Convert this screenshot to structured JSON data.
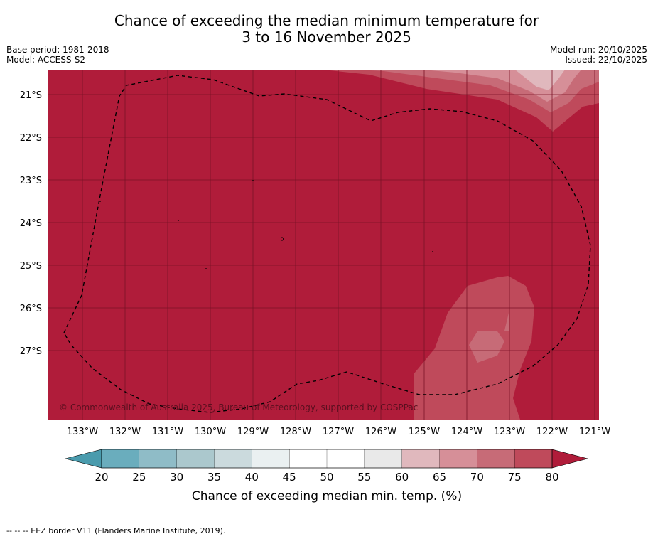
{
  "title": {
    "line1": "Chance of exceeding the median minimum temperature for",
    "line2": "3 to 16 November 2025"
  },
  "meta": {
    "base_period": "Base period: 1981-2018",
    "model": "Model: ACCESS-S2",
    "model_run": "Model run: 20/10/2025",
    "issued": "Issued: 22/10/2025"
  },
  "map": {
    "lon_labels": [
      "133°W",
      "132°W",
      "131°W",
      "130°W",
      "129°W",
      "128°W",
      "127°W",
      "126°W",
      "125°W",
      "124°W",
      "123°W",
      "122°W",
      "121°W"
    ],
    "lat_labels": [
      "21°S",
      "22°S",
      "23°S",
      "24°S",
      "25°S",
      "26°S",
      "27°S"
    ],
    "copyright": "© Commonwealth of Australia 2025, Bureau of Meteorology, supported by COSPPac"
  },
  "colorbar": {
    "ticks": [
      "20",
      "25",
      "30",
      "35",
      "40",
      "45",
      "50",
      "55",
      "60",
      "65",
      "70",
      "75",
      "80"
    ],
    "label": "Chance of exceeding median min. temp. (%)",
    "colors": [
      "#6aadbd",
      "#8fbcc7",
      "#abc8cd",
      "#cbdadd",
      "#eaf0f1",
      "#ffffff",
      "#ffffff",
      "#e9e9e9",
      "#e0b8bd",
      "#d68f98",
      "#c76b77",
      "#bf4a5b"
    ],
    "under_color": "#4a9bad",
    "over_color": "#b01c3a"
  },
  "footer": "--  --  -- EEZ border V11 (Flanders Marine Institute, 2019)."
}
